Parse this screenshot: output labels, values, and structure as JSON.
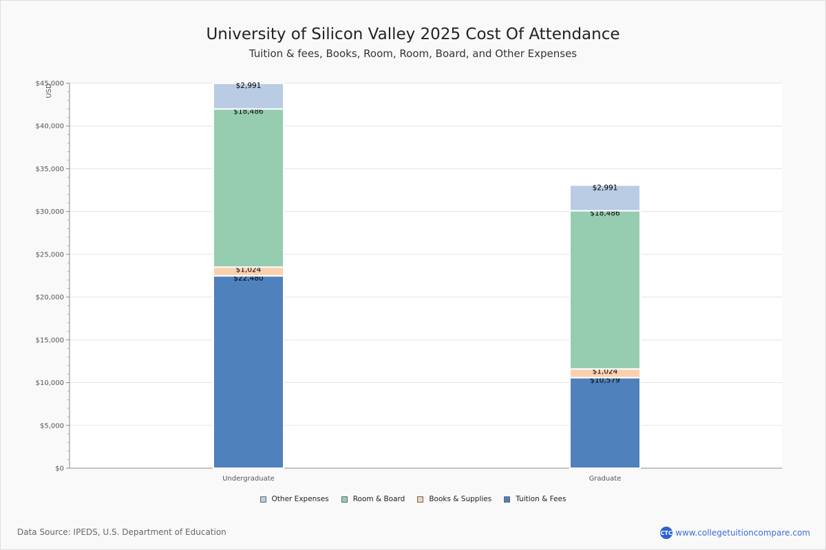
{
  "chart_data": {
    "type": "bar",
    "stacked": true,
    "title": "University of Silicon Valley 2025 Cost Of Attendance",
    "subtitle": "Tuition & fees, Books, Room, Room, Board, and Other Expenses",
    "ylabel": "USD",
    "xlabel": "",
    "ylim": [
      0,
      45000
    ],
    "yticks": [
      "$0",
      "$5,000",
      "$10,000",
      "$15,000",
      "$20,000",
      "$25,000",
      "$30,000",
      "$35,000",
      "$40,000",
      "$45,000"
    ],
    "categories": [
      "Undergraduate",
      "Graduate"
    ],
    "series": [
      {
        "name": "Tuition & Fees",
        "color": "#4f81bd",
        "values": [
          22480,
          10579
        ],
        "labels": [
          "$22,480",
          "$10,579"
        ]
      },
      {
        "name": "Books & Supplies",
        "color": "#fad1b0",
        "values": [
          1024,
          1024
        ],
        "labels": [
          "$1,024",
          "$1,024"
        ]
      },
      {
        "name": "Room & Board",
        "color": "#96cdb1",
        "values": [
          18486,
          18486
        ],
        "labels": [
          "$18,486",
          "$18,486"
        ]
      },
      {
        "name": "Other Expenses",
        "color": "#b9cce4",
        "values": [
          2991,
          2991
        ],
        "labels": [
          "$2,991",
          "$2,991"
        ]
      }
    ],
    "legend_order": [
      "Other Expenses",
      "Room & Board",
      "Books & Supplies",
      "Tuition & Fees"
    ],
    "legend_position": "bottom",
    "grid": true
  },
  "footer": {
    "source": "Data Source: IPEDS, U.S. Department of Education",
    "brand": "www.collegetuitioncompare.com",
    "logo": "CTC"
  }
}
